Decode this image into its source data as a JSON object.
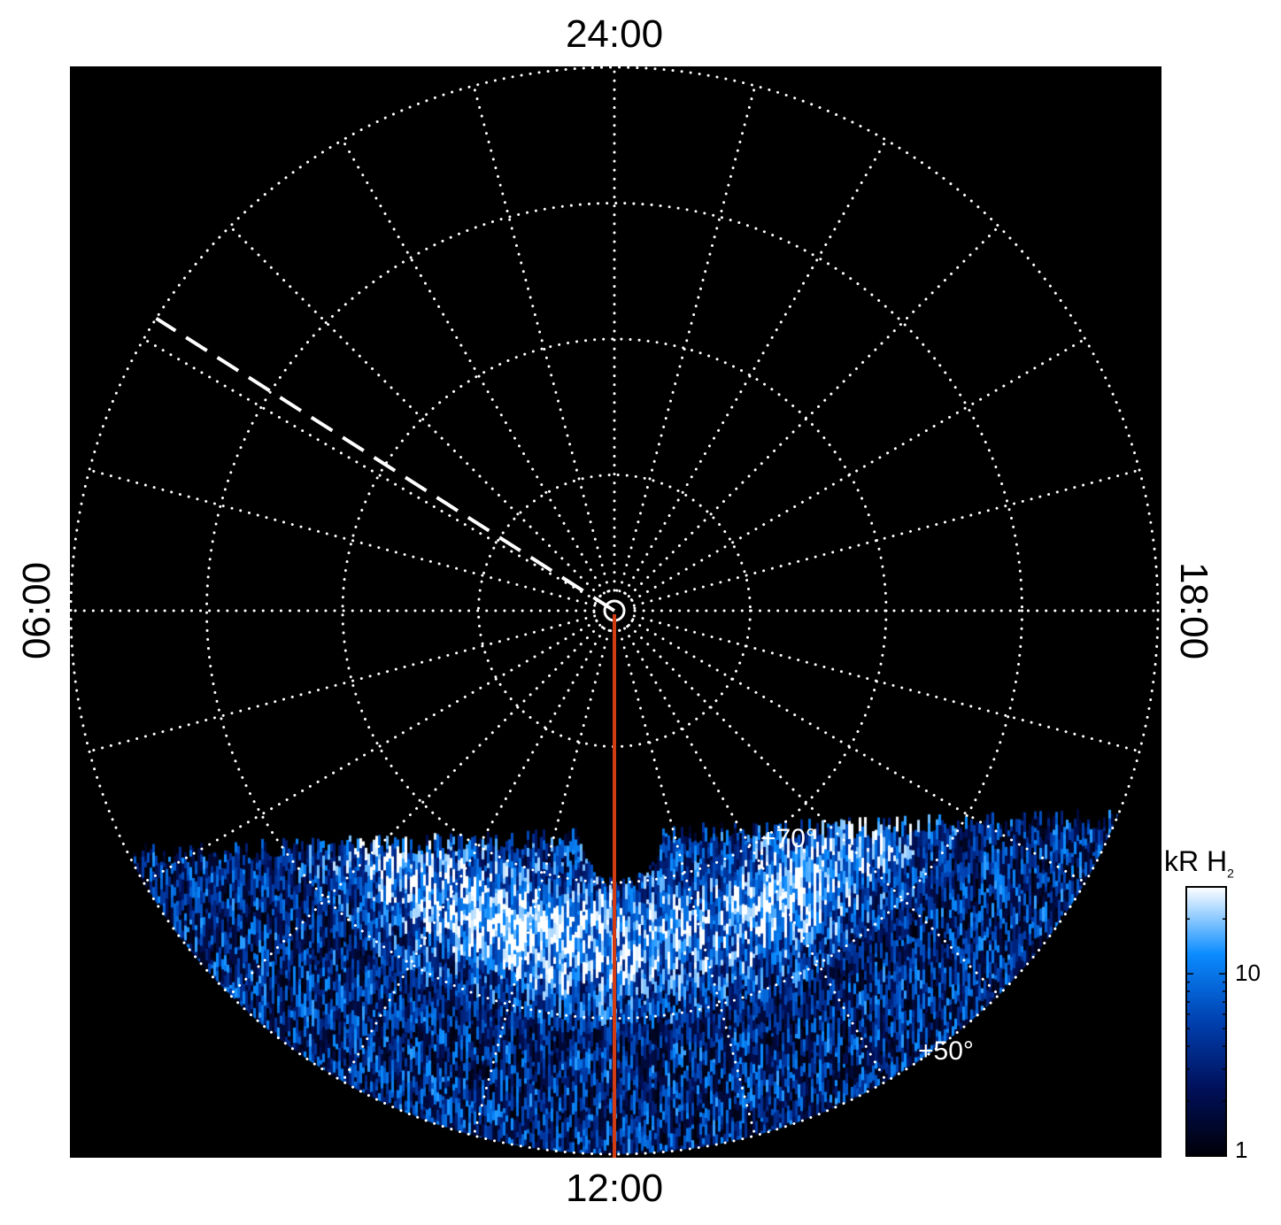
{
  "chart_data": {
    "type": "heatmap",
    "projection": "polar",
    "local_time_labels": {
      "top": "24:00",
      "bottom": "12:00",
      "left": "06:00",
      "right": "18:00"
    },
    "latitude_circles_deg": [
      80,
      70,
      60,
      50
    ],
    "latitude_labels": [
      "+70°",
      "+50°"
    ],
    "meridian_spacing_hours": 1,
    "grid": true,
    "grid_color": "#ffffff",
    "grid_style": "dotted",
    "highlight_meridian": {
      "local_time_hours": 12,
      "color": "#d23c12"
    },
    "dashed_meridian": {
      "local_time_hours": 3.83,
      "color": "#ffffff"
    },
    "colorbar": {
      "title": "kR H",
      "title_subscript": "2",
      "scale": "log",
      "range": [
        1,
        30
      ],
      "tick_labels": [
        "10",
        "1"
      ],
      "tick_values": [
        10,
        1
      ],
      "colors": [
        "#000008",
        "#00105a",
        "#0040b0",
        "#0a8cff",
        "#ffffff"
      ]
    },
    "emission": {
      "local_time_range_hours": [
        7.5,
        17.0
      ],
      "latitude_range_deg": [
        50,
        76
      ],
      "peak_latitude_deg": 66,
      "peak_value_kR": 30
    }
  }
}
